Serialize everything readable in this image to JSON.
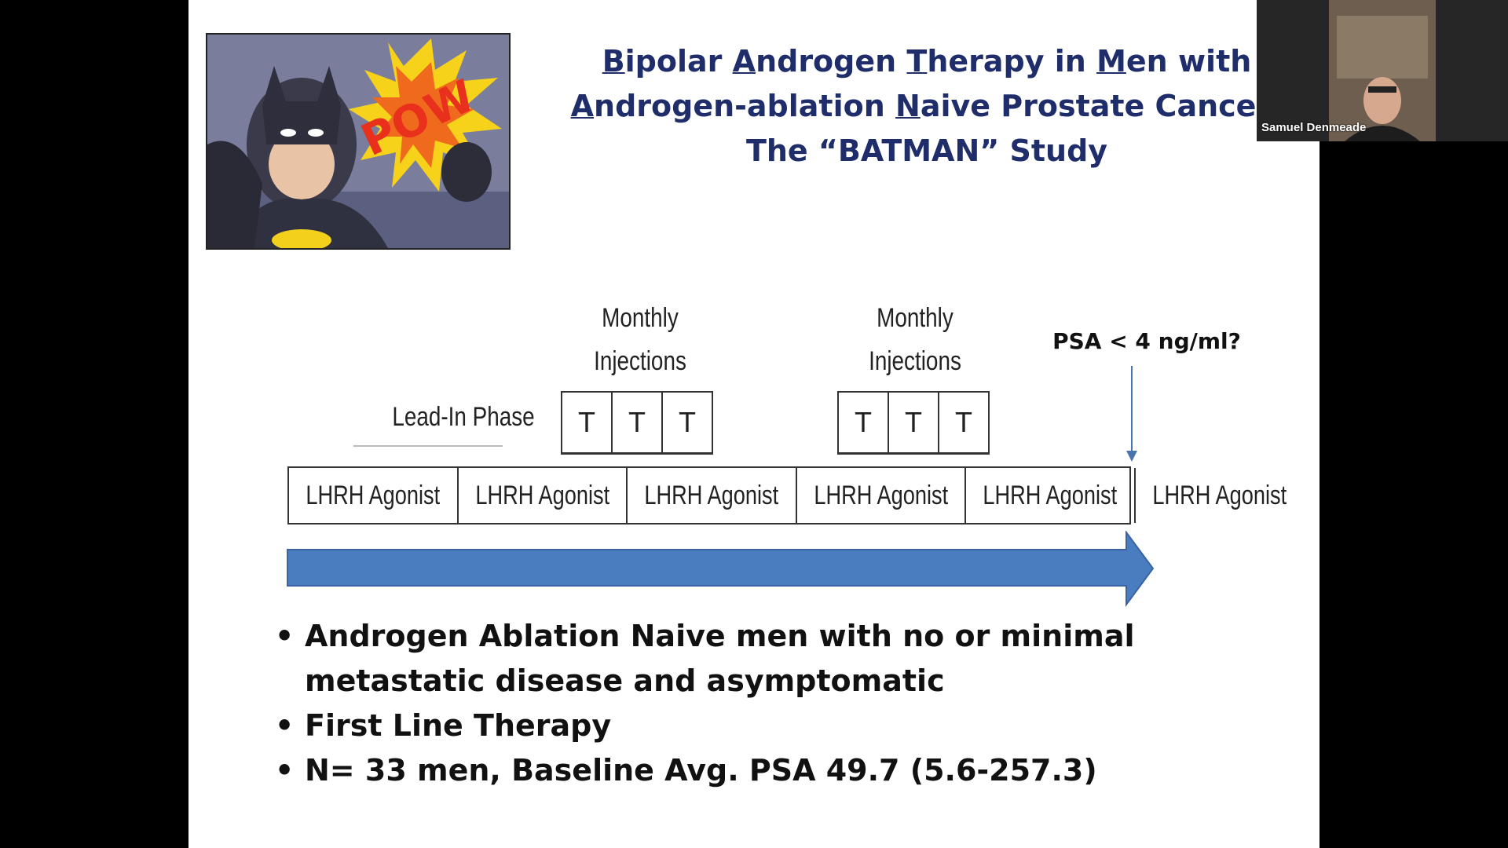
{
  "slide": {
    "title_line1": [
      "B",
      "ipolar ",
      "A",
      "ndrogen ",
      "T",
      "herapy in ",
      "M",
      "en with"
    ],
    "title_line2": [
      "A",
      "ndrogen-ablation ",
      "N",
      "aive Prostate Cancer:"
    ],
    "title_line3": "The “BATMAN” Study",
    "comic_text": "POW",
    "monthly_label": "Monthly Injections",
    "monthly_line1": "Monthly",
    "monthly_line2": "Injections",
    "lead_in_label": "Lead-In Phase",
    "psa_label": "PSA < 4 ng/ml?",
    "injection_cells": [
      "T",
      "T",
      "T"
    ],
    "lhrh_cells": [
      "LHRH Agonist",
      "LHRH Agonist",
      "LHRH Agonist",
      "LHRH Agonist",
      "LHRH Agonist",
      "LHRH Agonist"
    ],
    "bullets": [
      "Androgen Ablation Naive men with no or minimal metastatic disease and asymptomatic",
      "First Line Therapy",
      "N= 33 men, Baseline Avg. PSA 49.7 (5.6-257.3)"
    ]
  },
  "video": {
    "participant_name": "Samuel Denmeade"
  },
  "colors": {
    "title": "#1f2d6b",
    "arrow": "#4a7cc0",
    "background": "#000000"
  }
}
